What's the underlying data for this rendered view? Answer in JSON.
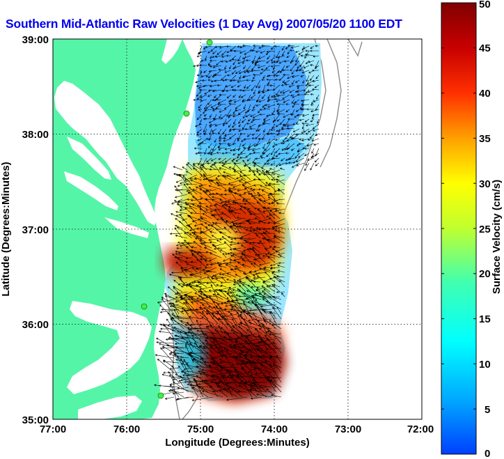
{
  "title": "Southern Mid-Atlantic Raw Velocities (1 Day Avg) 2007/05/20 1100 EDT",
  "chart_data": {
    "type": "heatmap",
    "xlabel": "Longitude (Degrees:Minutes)",
    "ylabel": "Latitude (Degrees:Minutes)",
    "x_ticks": [
      "77:00",
      "76:00",
      "75:00",
      "74:00",
      "73:00",
      "72:00"
    ],
    "y_ticks": [
      "39:00",
      "38:00",
      "37:00",
      "36:00",
      "35:00"
    ],
    "xlim": [
      -77,
      -72
    ],
    "ylim": [
      35,
      39
    ],
    "grid": true,
    "colorbar": {
      "label": "Surface Velocity (cm/s)",
      "range": [
        0,
        50
      ],
      "ticks": [
        "50",
        "45",
        "40",
        "35",
        "30",
        "25",
        "20",
        "15",
        "10",
        "5",
        "0"
      ]
    },
    "colors": {
      "land": "#55f5a8",
      "water": "#ffffff",
      "site_marker": "#44ee44"
    }
  }
}
